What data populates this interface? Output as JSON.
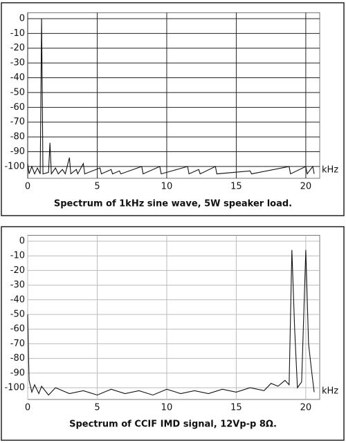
{
  "chart_data": [
    {
      "type": "line",
      "title": "Spectrum of 1kHz sine wave, 5W speaker load.",
      "x_label": "kHz",
      "xlim": [
        0,
        21
      ],
      "ylim": [
        -108,
        4
      ],
      "xticks": [
        0,
        5,
        10,
        15,
        20
      ],
      "yticks": [
        0,
        -10,
        -20,
        -30,
        -40,
        -50,
        -60,
        -70,
        -80,
        -90,
        -100
      ],
      "grid": true,
      "grid_color": "#222",
      "series": [
        {
          "color": "#111",
          "x": [
            0,
            0.1,
            0.3,
            0.5,
            0.7,
            0.9,
            1.0,
            1.1,
            1.5,
            1.6,
            1.7,
            2.0,
            2.2,
            2.5,
            2.7,
            3.0,
            3.1,
            3.5,
            3.6,
            4.0,
            4.1,
            5.2,
            5.3,
            6.0,
            6.1,
            6.6,
            6.7,
            8.2,
            8.3,
            9.5,
            9.6,
            11.5,
            11.6,
            12.3,
            12.4,
            13.5,
            13.6,
            16.0,
            16.1,
            18.8,
            18.9,
            20.0,
            20.1,
            20.5,
            20.6
          ],
          "values": [
            -98,
            -105,
            -100,
            -105,
            -101,
            -105,
            0,
            -105,
            -104,
            -84,
            -105,
            -101,
            -105,
            -102,
            -105,
            -94,
            -105,
            -102,
            -105,
            -98,
            -105,
            -101,
            -105,
            -102,
            -105,
            -103,
            -105,
            -100,
            -105,
            -100,
            -105,
            -100,
            -105,
            -102,
            -105,
            -100,
            -105,
            -103,
            -105,
            -100,
            -105,
            -100,
            -105,
            -100,
            -105
          ]
        }
      ]
    },
    {
      "type": "line",
      "title": "Spectrum of CCIF IMD signal, 12Vp-p 8Ω.",
      "x_label": "kHz",
      "xlim": [
        0,
        21
      ],
      "ylim": [
        -108,
        4
      ],
      "xticks": [
        0,
        5,
        10,
        15,
        20
      ],
      "yticks": [
        0,
        -10,
        -20,
        -30,
        -40,
        -50,
        -60,
        -70,
        -80,
        -90,
        -100
      ],
      "grid": true,
      "grid_color": "#bbb",
      "series": [
        {
          "color": "#111",
          "x": [
            0,
            0.1,
            0.3,
            0.5,
            0.8,
            1.0,
            1.5,
            2.0,
            3,
            4,
            5,
            6,
            7,
            8,
            9,
            10,
            11,
            12,
            13,
            14,
            15,
            16,
            17,
            17.5,
            18,
            18.5,
            18.8,
            19.0,
            19.2,
            19.4,
            19.7,
            20.0,
            20.2,
            20.4,
            20.6
          ],
          "values": [
            -50,
            -95,
            -103,
            -98,
            -104,
            -99,
            -105,
            -100,
            -104,
            -102,
            -105,
            -101,
            -104,
            -102,
            -105,
            -101,
            -104,
            -102,
            -104,
            -101,
            -103,
            -100,
            -102,
            -97,
            -99,
            -95,
            -98,
            -6,
            -60,
            -100,
            -96,
            -6,
            -70,
            -87,
            -103
          ]
        }
      ]
    }
  ]
}
